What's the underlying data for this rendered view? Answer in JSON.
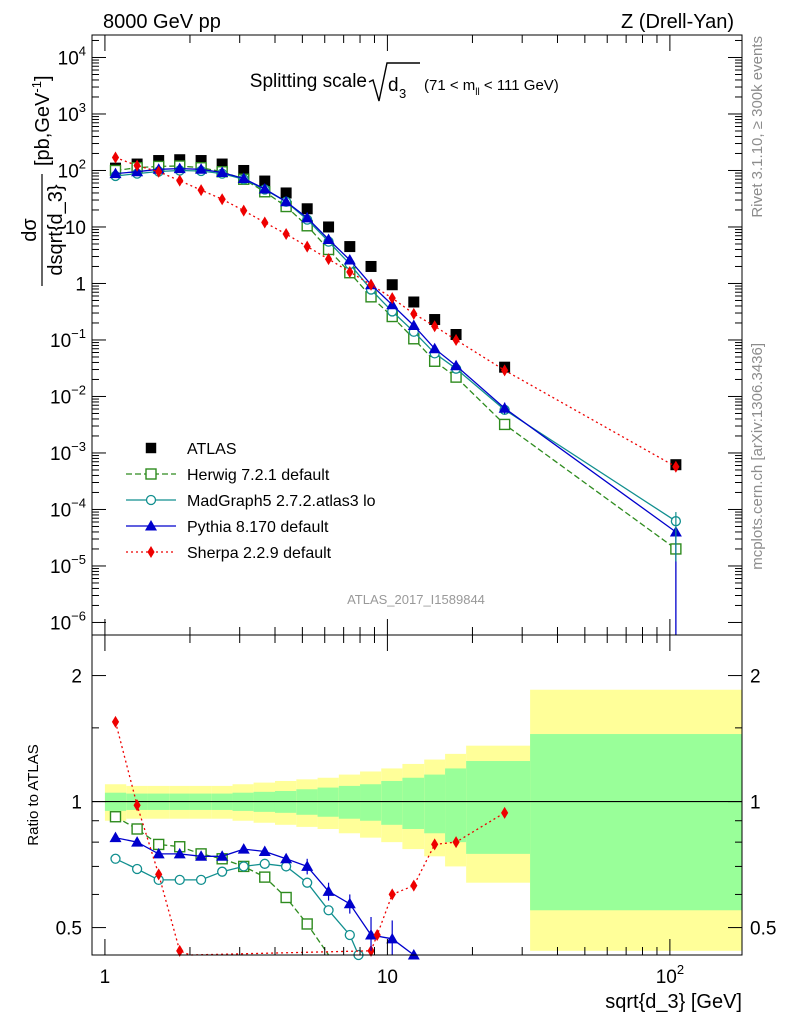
{
  "header": {
    "left": "8000 GeV pp",
    "right": "Z (Drell-Yan)"
  },
  "title": {
    "main": "Splitting scale",
    "symbol": "d",
    "sub": "3",
    "range_prefix": "(71 < m",
    "range_sub": "ll",
    "range_suffix": " < 111 GeV)"
  },
  "side_labels": {
    "rivet": "Rivet 3.1.10, ≥ 300k events",
    "mcplots": "mcplots.cern.ch [arXiv:1306.3436]"
  },
  "watermark": "ATLAS_2017_I1589844",
  "colors": {
    "data": "#000000",
    "herwig": "#2e8b1e",
    "madgraph": "#118f8f",
    "pythia": "#0000cc",
    "sherpa": "#ee0000",
    "band_outer": "#ffff99",
    "band_inner": "#99ff99"
  },
  "chart_data": [
    {
      "type": "scatter",
      "panel": "main",
      "xscale": "log",
      "yscale": "log",
      "xlim": [
        0.9,
        180
      ],
      "ylim": [
        6e-07,
        25000
      ],
      "ylabel_num": "dσ",
      "ylabel_den": "dsqrt{d_3}",
      "ylabel_unit": "[pb,GeV",
      "ylabel_unit_sup": "-1",
      "ylabel_unit_end": "]",
      "yticks": [
        {
          "v": 1e-06,
          "base": "10",
          "exp": "−6"
        },
        {
          "v": 1e-05,
          "base": "10",
          "exp": "−5"
        },
        {
          "v": 0.0001,
          "base": "10",
          "exp": "−4"
        },
        {
          "v": 0.001,
          "base": "10",
          "exp": "−3"
        },
        {
          "v": 0.01,
          "base": "10",
          "exp": "−2"
        },
        {
          "v": 0.1,
          "base": "10",
          "exp": "−1"
        },
        {
          "v": 1,
          "base": "1",
          "exp": ""
        },
        {
          "v": 10,
          "base": "10",
          "exp": ""
        },
        {
          "v": 100,
          "base": "10",
          "exp": "2"
        },
        {
          "v": 1000,
          "base": "10",
          "exp": "3"
        },
        {
          "v": 10000,
          "base": "10",
          "exp": "4"
        }
      ],
      "legend": {
        "placement": "bottom-left",
        "entries": [
          {
            "key": "atlas",
            "label": "ATLAS"
          },
          {
            "key": "herwig",
            "label": "Herwig 7.2.1 default"
          },
          {
            "key": "madgraph",
            "label": "MadGraph5 2.7.2.atlas3 lo"
          },
          {
            "key": "pythia",
            "label": "Pythia 8.170 default"
          },
          {
            "key": "sherpa",
            "label": "Sherpa 2.2.9 default"
          }
        ]
      },
      "series": [
        {
          "key": "atlas",
          "name": "ATLAS",
          "x": [
            1.09,
            1.3,
            1.55,
            1.84,
            2.19,
            2.6,
            3.1,
            3.68,
            4.38,
            5.2,
            6.19,
            7.36,
            8.75,
            10.4,
            12.4,
            14.7,
            17.5,
            26.0,
            105.0
          ],
          "y": [
            110,
            130,
            150,
            155,
            150,
            130,
            100,
            65,
            40,
            21,
            10,
            4.5,
            2.0,
            0.95,
            0.47,
            0.23,
            0.125,
            0.033,
            0.00062
          ]
        },
        {
          "key": "herwig",
          "name": "Herwig 7.2.1 default",
          "x": [
            1.09,
            1.3,
            1.55,
            1.84,
            2.19,
            2.6,
            3.1,
            3.68,
            4.38,
            5.2,
            6.19,
            7.36,
            8.75,
            10.4,
            12.4,
            14.7,
            17.5,
            26.0,
            105.0
          ],
          "y": [
            100,
            112,
            118,
            120,
            112,
            95,
            70,
            42,
            23,
            10.5,
            4.0,
            1.55,
            0.58,
            0.26,
            0.105,
            0.042,
            0.022,
            0.0032,
            2e-05
          ]
        },
        {
          "key": "madgraph",
          "name": "MadGraph5 2.7.2.atlas3 lo",
          "x": [
            1.09,
            1.3,
            1.55,
            1.84,
            2.19,
            2.6,
            3.1,
            3.68,
            4.38,
            5.2,
            6.19,
            7.36,
            8.75,
            10.4,
            12.4,
            14.7,
            17.5,
            26.0,
            105.0
          ],
          "y": [
            80,
            88,
            96,
            100,
            98,
            88,
            70,
            46,
            28,
            13.5,
            5.5,
            2.2,
            0.78,
            0.32,
            0.14,
            0.058,
            0.031,
            0.0058,
            6.2e-05
          ]
        },
        {
          "key": "pythia",
          "name": "Pythia 8.170 default",
          "x": [
            1.09,
            1.3,
            1.55,
            1.84,
            2.19,
            2.6,
            3.1,
            3.68,
            4.38,
            5.2,
            6.19,
            7.36,
            8.75,
            10.4,
            12.4,
            14.7,
            17.5,
            26.0,
            105.0
          ],
          "y": [
            88,
            95,
            105,
            108,
            105,
            92,
            72,
            47,
            28,
            14.5,
            6.0,
            2.6,
            0.95,
            0.42,
            0.18,
            0.07,
            0.035,
            0.0062,
            4e-05
          ]
        },
        {
          "key": "sherpa",
          "name": "Sherpa 2.2.9 default",
          "x": [
            1.09,
            1.3,
            1.55,
            1.84,
            2.19,
            2.6,
            3.1,
            3.68,
            4.38,
            5.2,
            6.19,
            7.36,
            8.75,
            10.4,
            12.4,
            14.7,
            17.5,
            26.0,
            105.0
          ],
          "y": [
            170,
            122,
            95,
            66,
            45,
            31,
            19.5,
            12,
            7.5,
            4.5,
            2.7,
            1.6,
            0.95,
            0.55,
            0.29,
            0.175,
            0.1,
            0.029,
            0.00057
          ]
        }
      ]
    },
    {
      "type": "scatter",
      "panel": "ratio",
      "xscale": "log",
      "yscale": "log",
      "xlim": [
        0.9,
        180
      ],
      "ylim": [
        0.43,
        2.5
      ],
      "xlabel": "sqrt{d_3} [GeV]",
      "ylabel": "Ratio to ATLAS",
      "xticks": [
        {
          "v": 1,
          "base": "1",
          "exp": ""
        },
        {
          "v": 10,
          "base": "10",
          "exp": ""
        },
        {
          "v": 100,
          "base": "10",
          "exp": "2"
        }
      ],
      "yticks": [
        {
          "v": 0.5,
          "label": "0.5"
        },
        {
          "v": 1,
          "label": "1"
        },
        {
          "v": 2,
          "label": "2"
        }
      ],
      "bands": {
        "edges": [
          1.0,
          1.19,
          1.42,
          1.69,
          2.0,
          2.38,
          2.83,
          3.36,
          4.0,
          4.76,
          5.66,
          6.73,
          8.0,
          9.51,
          11.3,
          13.5,
          16.0,
          19.0,
          32.0,
          180
        ],
        "inner": [
          0.05,
          0.045,
          0.045,
          0.045,
          0.045,
          0.045,
          0.05,
          0.055,
          0.06,
          0.07,
          0.08,
          0.09,
          0.1,
          0.12,
          0.14,
          0.16,
          0.2,
          0.25,
          0.45
        ],
        "outer": [
          0.1,
          0.09,
          0.09,
          0.09,
          0.09,
          0.09,
          0.1,
          0.11,
          0.12,
          0.13,
          0.14,
          0.16,
          0.18,
          0.2,
          0.23,
          0.26,
          0.3,
          0.36,
          0.85
        ]
      },
      "series": [
        {
          "key": "herwig",
          "name": "Herwig 7.2.1 default",
          "x": [
            1.09,
            1.3,
            1.55,
            1.84,
            2.19,
            2.6,
            3.1,
            3.68,
            4.38,
            5.2,
            6.19
          ],
          "y": [
            0.92,
            0.86,
            0.79,
            0.78,
            0.75,
            0.73,
            0.7,
            0.66,
            0.59,
            0.51,
            0.41
          ]
        },
        {
          "key": "madgraph",
          "name": "MadGraph5 2.7.2.atlas3 lo",
          "x": [
            1.09,
            1.3,
            1.55,
            1.84,
            2.19,
            2.6,
            3.1,
            3.68,
            4.38,
            5.2,
            6.19,
            7.36,
            7.9
          ],
          "y": [
            0.73,
            0.69,
            0.65,
            0.65,
            0.65,
            0.68,
            0.7,
            0.71,
            0.7,
            0.64,
            0.55,
            0.48,
            0.43
          ]
        },
        {
          "key": "pythia",
          "name": "Pythia 8.170 default",
          "x": [
            1.09,
            1.3,
            1.55,
            1.84,
            2.19,
            2.6,
            3.1,
            3.68,
            4.38,
            5.2,
            6.19,
            7.36,
            8.75,
            10.4,
            12.4
          ],
          "y": [
            0.82,
            0.8,
            0.75,
            0.75,
            0.74,
            0.74,
            0.77,
            0.76,
            0.73,
            0.7,
            0.61,
            0.57,
            0.48,
            0.47,
            0.43
          ]
        },
        {
          "key": "sherpa",
          "name": "Sherpa 2.2.9 default",
          "x": [
            1.09,
            1.3,
            1.55,
            1.84,
            2.0,
            8.75,
            9.2,
            10.4,
            12.4,
            14.7,
            17.5,
            26.0
          ],
          "y": [
            1.55,
            0.98,
            0.67,
            0.44,
            0.42,
            0.44,
            0.48,
            0.6,
            0.63,
            0.79,
            0.8,
            0.94
          ]
        }
      ]
    }
  ]
}
